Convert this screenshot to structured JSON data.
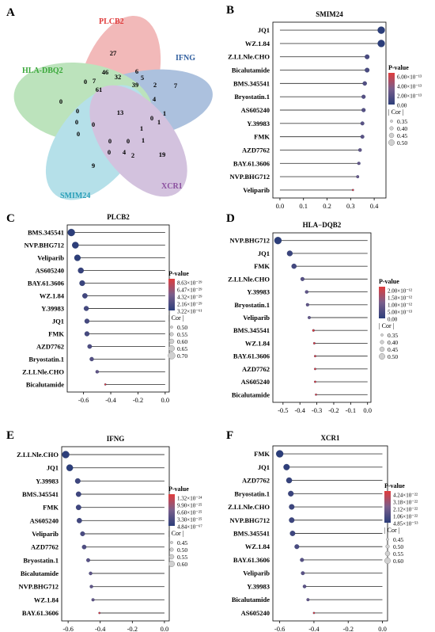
{
  "figure": {
    "venn": {
      "panel_letter": "A",
      "sets": [
        {
          "name": "PLCB2",
          "color": "#e03c3c"
        },
        {
          "name": "IFNG",
          "color": "#2e5d9e"
        },
        {
          "name": "HLA-DBQ2",
          "color": "#3aa83a"
        },
        {
          "name": "SMIM24",
          "color": "#2a9fb8"
        },
        {
          "name": "XCR1",
          "color": "#8a4e9e"
        }
      ],
      "counts": [
        "27",
        "6",
        "5",
        "46",
        "32",
        "39",
        "2",
        "7",
        "0",
        "7",
        "61",
        "4",
        "0",
        "13",
        "0",
        "1",
        "0",
        "0",
        "0",
        "0",
        "1",
        "1",
        "0",
        "1",
        "0",
        "4",
        "2",
        "0",
        "9",
        "19"
      ]
    },
    "colors": {
      "bar": "#444444",
      "high_p": "#e03c3c",
      "low_p": "#2c3e7a",
      "mid_p": "#7a5f8c",
      "size_circle": "#d0d0d0"
    }
  },
  "chart_data": [
    {
      "panel": "B",
      "type": "scatter",
      "subtype": "lollipop",
      "title": "SMIM24",
      "xlabel": "",
      "ylabel": "",
      "xlim": [
        -0.03,
        0.45
      ],
      "xticks": [
        "0.0",
        "0.1",
        "0.2",
        "0.3",
        "0.4"
      ],
      "categories": [
        "JQ1",
        "WZ.1.84",
        "Z.LLNle.CHO",
        "Bicalutamide",
        "BMS.345541",
        "Bryostatin.1",
        "AS605240",
        "Y.39983",
        "FMK",
        "AZD7762",
        "BAY.61.3606",
        "NVP.BHG712",
        "Veliparib"
      ],
      "values": [
        0.43,
        0.43,
        0.37,
        0.37,
        0.36,
        0.355,
        0.355,
        0.35,
        0.35,
        0.34,
        0.335,
        0.33,
        0.31
      ],
      "legend": {
        "pvalue_title": "P-value",
        "pvalue_labels": [
          "6.00×10⁻¹³",
          "4.00×10⁻¹³",
          "2.00×10⁻¹³",
          "0.00"
        ],
        "cor_title": "| Cor |",
        "cor_labels": [
          "0.35",
          "0.40",
          "0.45",
          "0.50"
        ]
      }
    },
    {
      "panel": "C",
      "type": "scatter",
      "subtype": "lollipop",
      "title": "PLCB2",
      "xlabel": "",
      "ylabel": "",
      "xlim": [
        -0.72,
        0.03
      ],
      "xticks": [
        "-0.6",
        "-0.4",
        "-0.2",
        "0.0"
      ],
      "categories": [
        "BMS.345541",
        "NVP.BHG712",
        "Veliparib",
        "AS605240",
        "BAY.61.3606",
        "WZ.1.84",
        "Y.39983",
        "JQ1",
        "FMK",
        "AZD7762",
        "Bryostatin.1",
        "Z.LLNle.CHO",
        "Bicalutamide"
      ],
      "values": [
        -0.69,
        -0.66,
        -0.645,
        -0.62,
        -0.61,
        -0.59,
        -0.58,
        -0.575,
        -0.575,
        -0.555,
        -0.54,
        -0.5,
        -0.44
      ],
      "legend": {
        "pvalue_title": "P-value",
        "pvalue_labels": [
          "8.63×10⁻²⁹",
          "6.47×10⁻²⁹",
          "4.32×10⁻²⁹",
          "2.16×10⁻²⁹",
          "3.22×10⁻⁶¹"
        ],
        "cor_title": "| Cor |",
        "cor_labels": [
          "0.50",
          "0.55",
          "0.60",
          "0.65",
          "0.70"
        ]
      }
    },
    {
      "panel": "D",
      "type": "scatter",
      "subtype": "lollipop",
      "title": "HLA−DQB2",
      "xlabel": "",
      "ylabel": "",
      "xlim": [
        -0.56,
        0.02
      ],
      "xticks": [
        "-0.5",
        "-0.4",
        "-0.3",
        "-0.2",
        "-0.1",
        "0.0"
      ],
      "categories": [
        "NVP.BHG712",
        "JQ1",
        "FMK",
        "Z.LLNle.CHO",
        "Y.39983",
        "Bryostatin.1",
        "Veliparib",
        "BMS.345541",
        "WZ.1.84",
        "BAY.61.3606",
        "AZD7762",
        "AS605240",
        "Bicalutamide"
      ],
      "values": [
        -0.53,
        -0.46,
        -0.435,
        -0.385,
        -0.36,
        -0.355,
        -0.345,
        -0.32,
        -0.315,
        -0.31,
        -0.31,
        -0.31,
        -0.305
      ],
      "legend": {
        "pvalue_title": "P-value",
        "pvalue_labels": [
          "2.00×10⁻¹²",
          "1.50×10⁻¹²",
          "1.00×10⁻¹²",
          "5.00×10⁻¹³",
          "0.00"
        ],
        "cor_title": "| Cor |",
        "cor_labels": [
          "0.35",
          "0.40",
          "0.45",
          "0.50"
        ]
      }
    },
    {
      "panel": "E",
      "type": "scatter",
      "subtype": "lollipop",
      "title": "IFNG",
      "xlabel": "",
      "ylabel": "",
      "xlim": [
        -0.64,
        0.03
      ],
      "xticks": [
        "-0.6",
        "-0.4",
        "-0.2",
        "0.0"
      ],
      "categories": [
        "Z.LLNle.CHO",
        "JQ1",
        "Y.39983",
        "BMS.345541",
        "FMK",
        "AS605240",
        "Veliparib",
        "AZD7762",
        "Bryostatin.1",
        "Bicalutamide",
        "NVP.BHG712",
        "WZ.1.84",
        "BAY.61.3606"
      ],
      "values": [
        -0.615,
        -0.59,
        -0.54,
        -0.535,
        -0.535,
        -0.53,
        -0.51,
        -0.5,
        -0.475,
        -0.46,
        -0.455,
        -0.445,
        -0.405
      ],
      "legend": {
        "pvalue_title": "P-value",
        "pvalue_labels": [
          "1.32×10⁻²⁴",
          "9.90×10⁻²⁵",
          "6.60×10⁻²⁵",
          "3.30×10⁻²⁵",
          "4.84×10⁻⁶⁷"
        ],
        "cor_title": "| Cor |",
        "cor_labels": [
          "0.45",
          "0.50",
          "0.55",
          "0.60"
        ]
      }
    },
    {
      "panel": "F",
      "type": "scatter",
      "subtype": "lollipop",
      "title": "XCR1",
      "xlabel": "",
      "ylabel": "",
      "xlim": [
        -0.64,
        0.03
      ],
      "xticks": [
        "-0.6",
        "-0.4",
        "-0.2",
        "0.0"
      ],
      "categories": [
        "FMK",
        "JQ1",
        "AZD7762",
        "Bryostatin.1",
        "Z.LLNle.CHO",
        "NVP.BHG712",
        "BMS.345541",
        "WZ.1.84",
        "BAY.61.3606",
        "Veliparib",
        "Y.39983",
        "Bicalutamide",
        "AS605240"
      ],
      "values": [
        -0.6,
        -0.56,
        -0.545,
        -0.535,
        -0.53,
        -0.53,
        -0.525,
        -0.5,
        -0.47,
        -0.465,
        -0.455,
        -0.435,
        -0.4
      ],
      "legend": {
        "pvalue_title": "P-value",
        "pvalue_labels": [
          "4.24×10⁻²²",
          "3.18×10⁻²²",
          "2.12×10⁻²²",
          "1.06×10⁻²²",
          "4.85×10⁻⁵³"
        ],
        "cor_title": "| Cor |",
        "cor_labels": [
          "0.45",
          "0.50",
          "0.55",
          "0.60"
        ]
      }
    }
  ]
}
